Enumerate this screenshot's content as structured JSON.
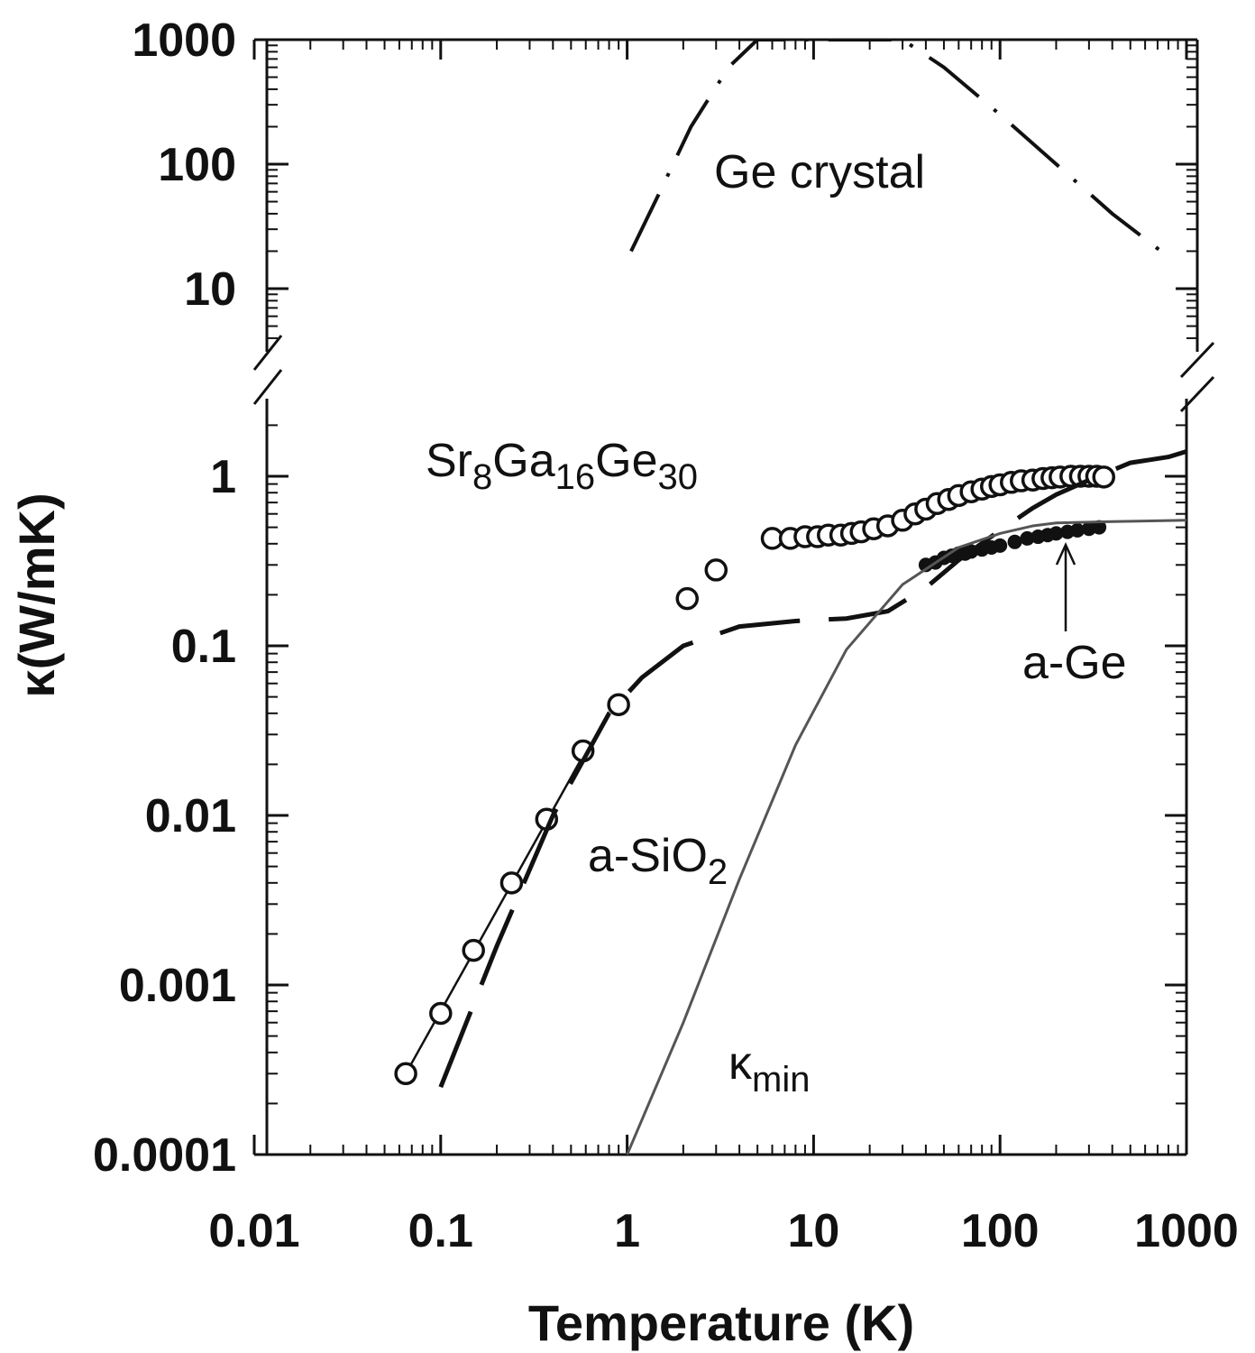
{
  "chart_data": {
    "type": "scatter",
    "xlabel": "Temperature (K)",
    "ylabel": "κ(W/mK)",
    "xscale": "log",
    "yscale": "log",
    "xlim": [
      0.01,
      1000
    ],
    "ylim_lower_panel": [
      0.0001,
      2.5
    ],
    "ylim_upper_panel": [
      3,
      1000
    ],
    "axis_break": true,
    "grid": false,
    "x_ticks": [
      "0.01",
      "0.1",
      "1",
      "10",
      "100",
      "1000"
    ],
    "y_ticks_lower": [
      "0.0001",
      "0.001",
      "0.01",
      "0.1",
      "1"
    ],
    "y_ticks_upper": [
      "10",
      "100",
      "1000"
    ],
    "annotations": {
      "ge_crystal": "Ge crystal",
      "sr_compound": {
        "t1": "Sr",
        "s1": "8",
        "t2": "Ga",
        "s2": "16",
        "t3": "Ge",
        "s3": "30"
      },
      "a_ge": "a-Ge",
      "a_sio2": {
        "t1": "a-SiO",
        "s1": "2"
      },
      "kmin": {
        "t1": "κ",
        "s1": "min"
      }
    },
    "series": [
      {
        "name": "Sr8Ga16Ge30",
        "style": "open-circles",
        "color": "#111111",
        "low_T_fit": [
          [
            0.065,
            0.0003
          ],
          [
            0.6,
            0.024
          ]
        ],
        "points": [
          [
            0.065,
            0.0003
          ],
          [
            0.1,
            0.00068
          ],
          [
            0.15,
            0.0016
          ],
          [
            0.24,
            0.004
          ],
          [
            0.37,
            0.0095
          ],
          [
            0.58,
            0.024
          ],
          [
            0.9,
            0.045
          ],
          [
            2.1,
            0.19
          ],
          [
            3.0,
            0.28
          ],
          [
            6.0,
            0.43
          ],
          [
            7.5,
            0.43
          ],
          [
            9.0,
            0.44
          ],
          [
            10.5,
            0.44
          ],
          [
            12,
            0.45
          ],
          [
            14,
            0.45
          ],
          [
            16,
            0.46
          ],
          [
            18,
            0.47
          ],
          [
            21,
            0.49
          ],
          [
            25,
            0.51
          ],
          [
            30,
            0.55
          ],
          [
            35,
            0.6
          ],
          [
            40,
            0.64
          ],
          [
            46,
            0.69
          ],
          [
            53,
            0.73
          ],
          [
            60,
            0.77
          ],
          [
            70,
            0.81
          ],
          [
            80,
            0.84
          ],
          [
            90,
            0.87
          ],
          [
            100,
            0.89
          ],
          [
            115,
            0.92
          ],
          [
            130,
            0.94
          ],
          [
            150,
            0.95
          ],
          [
            170,
            0.97
          ],
          [
            190,
            0.98
          ],
          [
            210,
            0.99
          ],
          [
            240,
            1.0
          ],
          [
            270,
            1.0
          ],
          [
            300,
            1.0
          ],
          [
            330,
            1.0
          ],
          [
            360,
            0.99
          ]
        ]
      },
      {
        "name": "a-Ge",
        "style": "dense filled points",
        "color": "#111111",
        "points": [
          [
            40,
            0.3
          ],
          [
            45,
            0.31
          ],
          [
            50,
            0.33
          ],
          [
            55,
            0.34
          ],
          [
            60,
            0.35
          ],
          [
            65,
            0.35
          ],
          [
            70,
            0.36
          ],
          [
            80,
            0.37
          ],
          [
            90,
            0.38
          ],
          [
            100,
            0.39
          ],
          [
            120,
            0.41
          ],
          [
            140,
            0.43
          ],
          [
            160,
            0.44
          ],
          [
            180,
            0.45
          ],
          [
            200,
            0.46
          ],
          [
            230,
            0.47
          ],
          [
            260,
            0.48
          ],
          [
            300,
            0.49
          ],
          [
            340,
            0.5
          ]
        ]
      },
      {
        "name": "a-SiO2",
        "style": "long-dash line",
        "color": "#111111",
        "points": [
          [
            0.1,
            0.00025
          ],
          [
            0.2,
            0.0017
          ],
          [
            0.4,
            0.01
          ],
          [
            0.8,
            0.04
          ],
          [
            1.2,
            0.065
          ],
          [
            2,
            0.1
          ],
          [
            4,
            0.13
          ],
          [
            8,
            0.14
          ],
          [
            15,
            0.145
          ],
          [
            25,
            0.16
          ],
          [
            40,
            0.22
          ],
          [
            60,
            0.32
          ],
          [
            100,
            0.48
          ],
          [
            150,
            0.65
          ],
          [
            200,
            0.78
          ],
          [
            300,
            0.95
          ],
          [
            500,
            1.2
          ],
          [
            800,
            1.3
          ],
          [
            1000,
            1.4
          ]
        ]
      },
      {
        "name": "κmin",
        "style": "thin solid line",
        "color": "#555555",
        "points": [
          [
            1,
            0.0001
          ],
          [
            2,
            0.0006
          ],
          [
            4,
            0.0042
          ],
          [
            8,
            0.026
          ],
          [
            15,
            0.095
          ],
          [
            30,
            0.23
          ],
          [
            60,
            0.38
          ],
          [
            100,
            0.46
          ],
          [
            150,
            0.51
          ],
          [
            200,
            0.53
          ],
          [
            400,
            0.54
          ],
          [
            1000,
            0.55
          ]
        ]
      },
      {
        "name": "Ge crystal",
        "style": "dash-dot line",
        "color": "#111111",
        "points": [
          [
            1.05,
            20
          ],
          [
            1.5,
            60
          ],
          [
            2.2,
            200
          ],
          [
            3.5,
            600
          ],
          [
            5,
            1000
          ],
          [
            30,
            1000
          ],
          [
            50,
            600
          ],
          [
            100,
            250
          ],
          [
            200,
            100
          ],
          [
            400,
            40
          ],
          [
            800,
            18
          ]
        ]
      }
    ]
  }
}
